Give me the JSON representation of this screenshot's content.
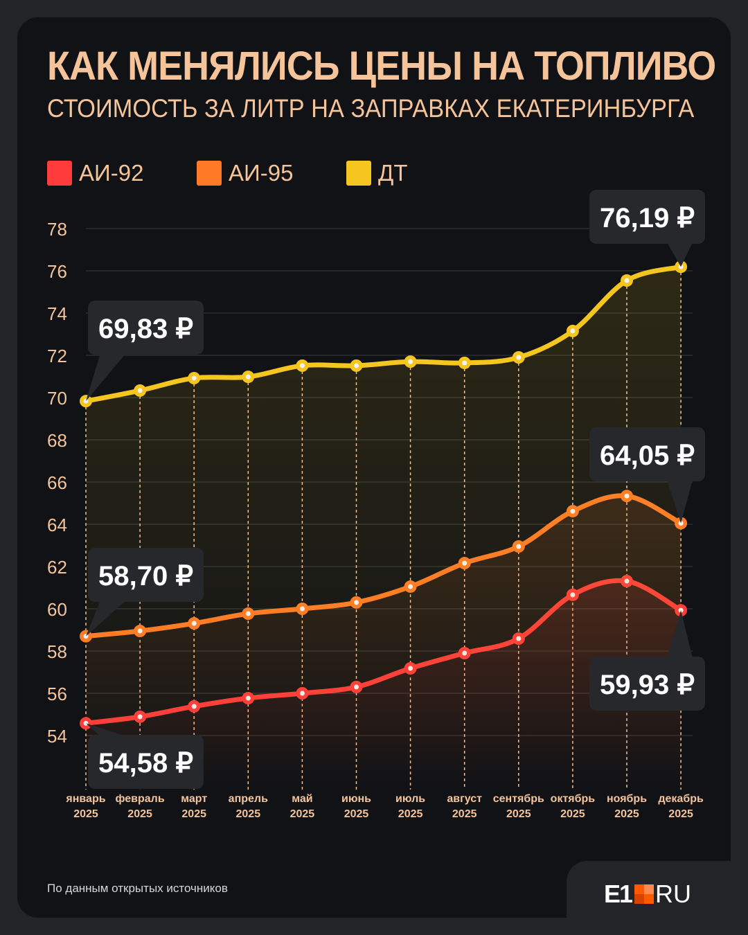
{
  "title": "КАК МЕНЯЛИСЬ ЦЕНЫ НА ТОПЛИВО",
  "subtitle": "СТОИМОСТЬ ЗА ЛИТР НА ЗАПРАВКАХ ЕКАТЕРИНБУРГА",
  "source": "По данным открытых источников",
  "logo": {
    "e1": "E1",
    "ru": "RU"
  },
  "colors": {
    "ai92": "#ff3b3b",
    "ai95": "#ff7a26",
    "dt": "#f5c61f",
    "text": "#f6c49a"
  },
  "chart_data": {
    "type": "line",
    "title": "КАК МЕНЯЛИСЬ ЦЕНЫ НА ТОПЛИВО",
    "ylim": [
      54,
      78
    ],
    "yticks": [
      54,
      56,
      58,
      60,
      62,
      64,
      66,
      68,
      70,
      72,
      74,
      76,
      78
    ],
    "grid": true,
    "legend": "top-left",
    "categories": [
      [
        "январь",
        "2025"
      ],
      [
        "февраль",
        "2025"
      ],
      [
        "март",
        "2025"
      ],
      [
        "апрель",
        "2025"
      ],
      [
        "май",
        "2025"
      ],
      [
        "июнь",
        "2025"
      ],
      [
        "июль",
        "2025"
      ],
      [
        "август",
        "2025"
      ],
      [
        "сентябрь",
        "2025"
      ],
      [
        "октябрь",
        "2025"
      ],
      [
        "ноябрь",
        "2025"
      ],
      [
        "декабрь",
        "2025"
      ]
    ],
    "series": [
      {
        "name": "АИ-92",
        "color": "#ff3b3b",
        "values": [
          54.58,
          54.89,
          55.38,
          55.77,
          56.0,
          56.3,
          57.18,
          57.9,
          58.59,
          60.66,
          61.31,
          59.93
        ],
        "labels": {
          "first": "54,58 ₽",
          "last": "59,93 ₽"
        }
      },
      {
        "name": "АИ-95",
        "color": "#ff7a26",
        "values": [
          58.7,
          58.95,
          59.31,
          59.77,
          60.0,
          60.3,
          61.05,
          62.16,
          62.95,
          64.62,
          65.34,
          64.05
        ],
        "labels": {
          "first": "58,70 ₽",
          "last": "64,05 ₽"
        }
      },
      {
        "name": "ДТ",
        "color": "#f5c61f",
        "values": [
          69.83,
          70.33,
          70.92,
          70.98,
          71.51,
          71.51,
          71.7,
          71.64,
          71.9,
          73.15,
          75.54,
          76.19
        ],
        "labels": {
          "first": "69,83 ₽",
          "last": "76,19 ₽"
        }
      }
    ]
  }
}
